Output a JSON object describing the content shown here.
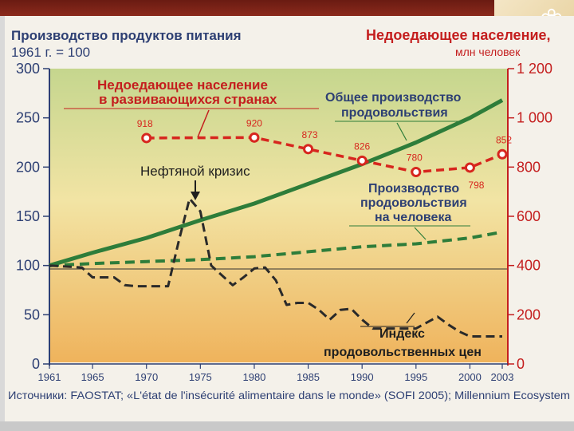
{
  "header": {
    "left_title": "Производство продуктов питания",
    "left_subtitle": "1961 г. = 100",
    "right_title": "Недоедающее население,",
    "right_subtitle": "млн человек"
  },
  "source_text": "Источники: FAOSTAT; «L'état de l'insécurité alimentaire dans le monde» (SOFI 2005); Millennium Ecosystem",
  "colors": {
    "total_production": "#2e7d3a",
    "per_capita": "#2e7d3a",
    "price_index": "#2a2a2a",
    "undernourished": "#d7261e",
    "left_axis": "#2d3f73",
    "right_axis": "#c41e1e"
  },
  "annotations": {
    "undernourished_line1": "Недоедающее население",
    "undernourished_line2": "в развивающихся странах",
    "total_line1": "Общее производство",
    "total_line2": "продовольствия",
    "percap_line1": "Производство",
    "percap_line2": "продовольствия",
    "percap_line3": "на человека",
    "oil_crisis": "Нефтяной кризис",
    "index_line1": "Индекс",
    "index_line2": "продовольственных цен"
  },
  "chart_data": {
    "type": "line",
    "x_ticks": [
      "1961",
      "1965",
      "1970",
      "1975",
      "1980",
      "1985",
      "1990",
      "1995",
      "2000",
      "2003"
    ],
    "xlim": [
      1961,
      2003
    ],
    "y_left": {
      "ylim": [
        0,
        300
      ],
      "ticks": [
        "0",
        "50",
        "100",
        "150",
        "200",
        "250",
        "300"
      ]
    },
    "y_right": {
      "ylim": [
        0,
        1200
      ],
      "ticks": [
        "0",
        "200",
        "400",
        "600",
        "800",
        "1 000",
        "1 200"
      ]
    },
    "series": [
      {
        "name": "Общее производство продовольствия",
        "axis": "left",
        "style": "solid",
        "x": [
          1961,
          1965,
          1970,
          1975,
          1980,
          1985,
          1990,
          1995,
          2000,
          2003
        ],
        "y": [
          100,
          113,
          128,
          146,
          163,
          183,
          203,
          225,
          250,
          268
        ]
      },
      {
        "name": "Производство продовольствия на человека",
        "axis": "left",
        "style": "dashed",
        "x": [
          1961,
          1965,
          1970,
          1975,
          1980,
          1985,
          1990,
          1995,
          2000,
          2003
        ],
        "y": [
          100,
          102,
          104,
          106,
          109,
          114,
          119,
          122,
          128,
          134
        ]
      },
      {
        "name": "Индекс продовольственных цен",
        "axis": "left",
        "style": "dashed",
        "x": [
          1961,
          1964,
          1965,
          1966,
          1967,
          1968,
          1969,
          1970,
          1971,
          1972,
          1973,
          1974,
          1975,
          1976,
          1977,
          1978,
          1979,
          1980,
          1981,
          1982,
          1983,
          1984,
          1985,
          1986,
          1987,
          1988,
          1989,
          1990,
          1991,
          1992,
          1993,
          1994,
          1995,
          1996,
          1997,
          1998,
          1999,
          2000,
          2001,
          2002,
          2003
        ],
        "y": [
          100,
          98,
          88,
          88,
          88,
          80,
          79,
          79,
          79,
          79,
          125,
          168,
          155,
          100,
          90,
          80,
          88,
          97,
          98,
          85,
          60,
          62,
          62,
          55,
          45,
          55,
          56,
          45,
          36,
          36,
          36,
          36,
          36,
          42,
          48,
          40,
          33,
          28,
          28,
          28,
          28
        ]
      },
      {
        "name": "Недоедающее население в развивающихся странах",
        "axis": "right",
        "style": "dashed",
        "x": [
          1970,
          1980,
          1985,
          1990,
          1995,
          2000,
          2003
        ],
        "y": [
          918,
          920,
          873,
          826,
          780,
          798,
          852
        ],
        "data_labels": [
          "918",
          "920",
          "873",
          "826",
          "780",
          "798",
          "852"
        ]
      }
    ]
  }
}
